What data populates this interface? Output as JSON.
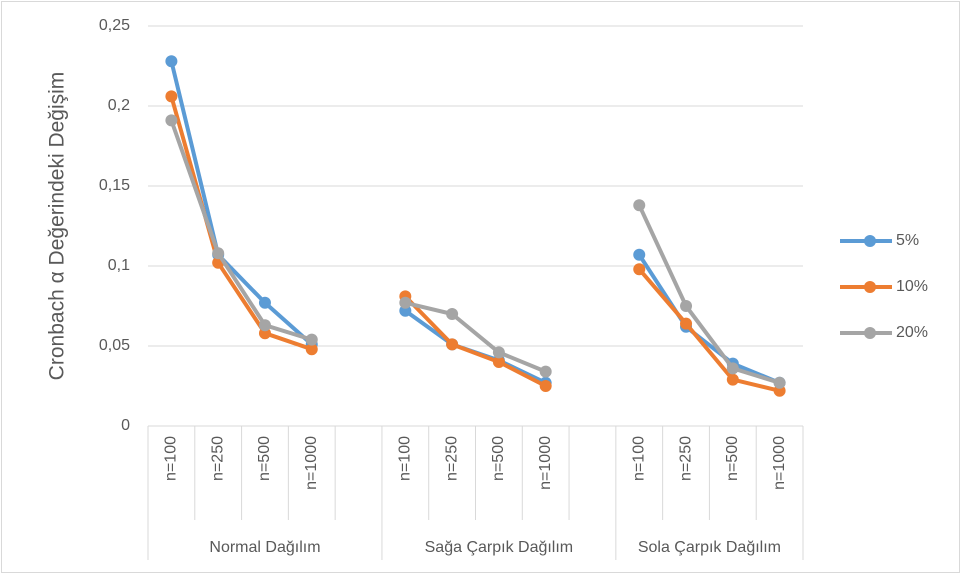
{
  "chart_data": {
    "type": "line",
    "y_axis_label": "Cronbach α Değerindeki Değişim",
    "categories": [
      "n=100",
      "n=250",
      "n=500",
      "n=1000",
      null,
      "n=100",
      "n=250",
      "n=500",
      "n=1000",
      null,
      "n=100",
      "n=250",
      "n=500",
      "n=1000"
    ],
    "groups": [
      "Normal Dağılım",
      "Sağa Çarpık Dağılım",
      "Sola Çarpık Dağılım"
    ],
    "series": [
      {
        "name": "5%",
        "color": "#5b9bd5",
        "values": [
          0.228,
          0.107,
          0.077,
          0.051,
          null,
          0.072,
          0.051,
          0.041,
          0.027,
          null,
          0.107,
          0.062,
          0.039,
          0.027
        ]
      },
      {
        "name": "10%",
        "color": "#ed7d31",
        "values": [
          0.206,
          0.102,
          0.058,
          0.048,
          null,
          0.081,
          0.051,
          0.04,
          0.025,
          null,
          0.098,
          0.064,
          0.029,
          0.022
        ]
      },
      {
        "name": "20%",
        "color": "#a5a5a5",
        "values": [
          0.191,
          0.108,
          0.063,
          0.054,
          null,
          0.077,
          0.07,
          0.046,
          0.034,
          null,
          0.138,
          0.075,
          0.036,
          0.027
        ]
      }
    ],
    "ylim": [
      0,
      0.25
    ],
    "yticks": [
      0,
      {
        "value": 0.05,
        "label": "0,05"
      },
      {
        "value": 0.1,
        "label": "0,1"
      },
      {
        "value": 0.15,
        "label": "0,15"
      },
      {
        "value": 0.2,
        "label": "0,2"
      },
      {
        "value": 0.25,
        "label": "0,25"
      }
    ],
    "grid": true,
    "legend": "right"
  }
}
